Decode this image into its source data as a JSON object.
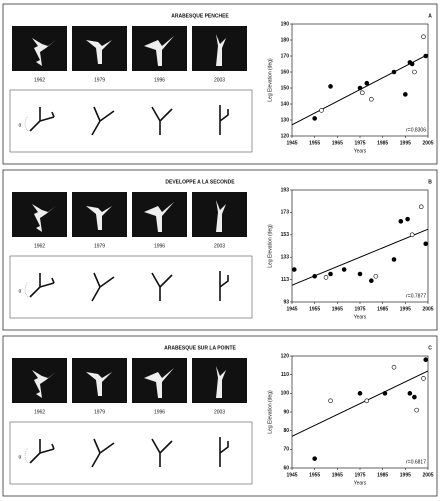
{
  "chart_data": [
    {
      "type": "scatter",
      "title": "ARABESQUE PENCHEE",
      "panel_label": "A",
      "ylabel": "Leg Elevation (deg)",
      "xlabel": "Years",
      "annotation": "r=0.8306",
      "xlim": [
        1945,
        2005
      ],
      "xticks": [
        1945,
        1955,
        1965,
        1975,
        1985,
        1995,
        2005
      ],
      "ylim": [
        120,
        190
      ],
      "yticks": [
        120,
        130,
        140,
        150,
        160,
        170,
        180,
        190
      ],
      "series": [
        {
          "marker": "filled",
          "color": "#000000",
          "x": [
            1955,
            1962,
            1975,
            1978,
            1990,
            1995,
            1997,
            1998,
            2004
          ],
          "values": [
            131,
            151,
            150,
            153,
            160,
            146,
            166,
            165,
            170
          ]
        },
        {
          "marker": "open",
          "color": "#000000",
          "x": [
            1958,
            1976,
            1980,
            1999,
            2003
          ],
          "values": [
            136,
            147,
            143,
            160,
            182
          ]
        }
      ],
      "fit_line": {
        "x": [
          1945,
          2005
        ],
        "y": [
          127,
          171
        ]
      }
    },
    {
      "type": "scatter",
      "title": "DEVELOPPE A LA SECONDE",
      "panel_label": "B",
      "ylabel": "Leg Elevation (deg)",
      "xlabel": "Years",
      "annotation": "r=0.7877",
      "xlim": [
        1945,
        2005
      ],
      "xticks": [
        1945,
        1955,
        1965,
        1975,
        1985,
        1995,
        2005
      ],
      "ylim": [
        93,
        193
      ],
      "yticks": [
        93,
        113,
        133,
        153,
        173,
        193
      ],
      "series": [
        {
          "marker": "filled",
          "color": "#000000",
          "x": [
            1946,
            1955,
            1962,
            1968,
            1975,
            1980,
            1990,
            1993,
            1996,
            2004
          ],
          "values": [
            122,
            116,
            118,
            122,
            118,
            112,
            131,
            165,
            167,
            145
          ]
        },
        {
          "marker": "open",
          "color": "#000000",
          "x": [
            1960,
            1982,
            1998,
            2002
          ],
          "values": [
            115,
            116,
            153,
            178
          ]
        }
      ],
      "fit_line": {
        "x": [
          1945,
          2005
        ],
        "y": [
          108,
          158
        ]
      }
    },
    {
      "type": "scatter",
      "title": "ARABESQUE SUR LA POINTE",
      "panel_label": "C",
      "ylabel": "Leg Elevation (deg)",
      "xlabel": "Years",
      "annotation": "r=0.6817",
      "xlim": [
        1945,
        2005
      ],
      "xticks": [
        1945,
        1955,
        1965,
        1975,
        1985,
        1995,
        2005
      ],
      "ylim": [
        60,
        120
      ],
      "yticks": [
        60,
        70,
        80,
        90,
        100,
        110,
        120
      ],
      "series": [
        {
          "marker": "filled",
          "color": "#000000",
          "x": [
            1955,
            1975,
            1986,
            1997,
            1999,
            2004
          ],
          "values": [
            65,
            100,
            100,
            100,
            98,
            118
          ]
        },
        {
          "marker": "open",
          "color": "#000000",
          "x": [
            1962,
            1978,
            1990,
            2000,
            2003
          ],
          "values": [
            96,
            96,
            114,
            91,
            108
          ]
        }
      ],
      "fit_line": {
        "x": [
          1945,
          2005
        ],
        "y": [
          77,
          112
        ]
      }
    }
  ],
  "panels": [
    {
      "years": [
        "1962",
        "1979",
        "1996",
        "2003"
      ],
      "angle_label": "α"
    },
    {
      "years": [
        "1962",
        "1979",
        "1996",
        "2003"
      ],
      "angle_label": "α"
    },
    {
      "years": [
        "1962",
        "1979",
        "1996",
        "2003"
      ],
      "angle_label": "α"
    }
  ]
}
